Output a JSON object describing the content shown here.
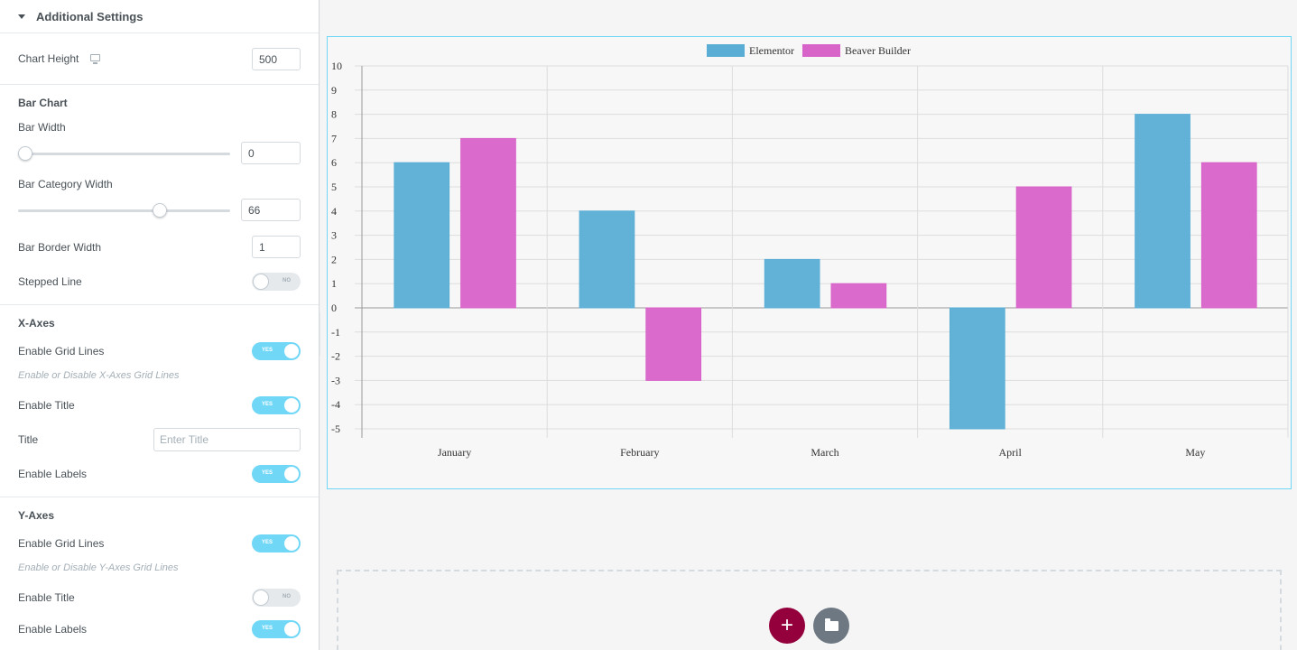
{
  "panel": {
    "section_title": "Additional Settings",
    "chart_height": {
      "label": "Chart Height",
      "value": "500"
    },
    "bar_chart": {
      "heading": "Bar Chart",
      "bar_width": {
        "label": "Bar Width",
        "value": "0",
        "fraction": 0.0
      },
      "bar_category_width": {
        "label": "Bar Category Width",
        "value": "66",
        "fraction": 0.66
      },
      "bar_border_width": {
        "label": "Bar Border Width",
        "value": "1"
      },
      "stepped_line": {
        "label": "Stepped Line",
        "state": "NO"
      }
    },
    "x_axes": {
      "heading": "X-Axes",
      "grid_lines": {
        "label": "Enable Grid Lines",
        "state": "YES",
        "hint": "Enable or Disable X-Axes Grid Lines"
      },
      "enable_title": {
        "label": "Enable Title",
        "state": "YES"
      },
      "title": {
        "label": "Title",
        "placeholder": "Enter Title"
      },
      "enable_labels": {
        "label": "Enable Labels",
        "state": "YES"
      }
    },
    "y_axes": {
      "heading": "Y-Axes",
      "grid_lines": {
        "label": "Enable Grid Lines",
        "state": "YES",
        "hint": "Enable or Disable Y-Axes Grid Lines"
      },
      "enable_title": {
        "label": "Enable Title",
        "state": "NO"
      },
      "enable_labels": {
        "label": "Enable Labels",
        "state": "YES"
      }
    }
  },
  "icons": {
    "monitor": "monitor-icon",
    "collapse": "chevron-left-icon",
    "add": "plus-icon",
    "folder": "folder-icon"
  },
  "colors": {
    "accent": "#71d7f7",
    "add_button": "#93003c",
    "series_a": "#5aaed6",
    "series_b": "#d863c9"
  },
  "chart_data": {
    "type": "bar",
    "categories": [
      "January",
      "February",
      "March",
      "April",
      "May"
    ],
    "series": [
      {
        "name": "Elementor",
        "values": [
          6,
          4,
          2,
          -5,
          8
        ],
        "color": "#5aaed6"
      },
      {
        "name": "Beaver Builder",
        "values": [
          7,
          -3,
          1,
          5,
          6
        ],
        "color": "#d863c9"
      }
    ],
    "ylim": [
      -5,
      10
    ],
    "yticks": [
      "10",
      "9",
      "8",
      "7",
      "6",
      "5",
      "4",
      "3",
      "2",
      "1",
      "0",
      "-1",
      "-2",
      "-3",
      "-4",
      "-5"
    ],
    "grid": true,
    "legend": "top-center"
  }
}
